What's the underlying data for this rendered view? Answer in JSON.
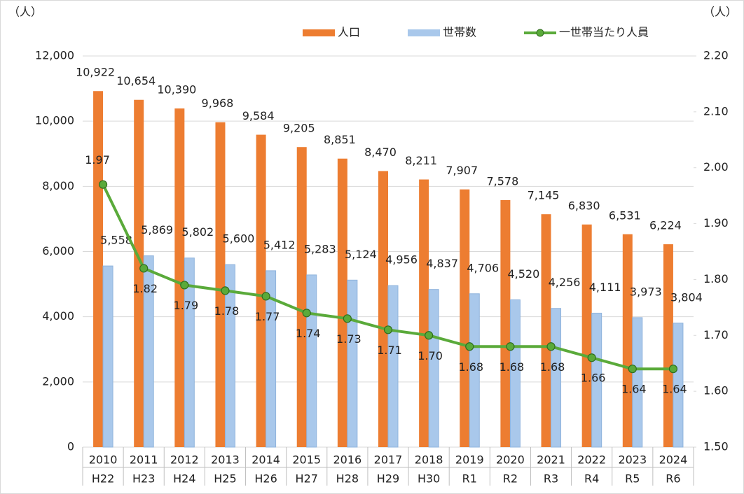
{
  "chart_data": {
    "type": "bar-line",
    "y_unit_label": "（人）",
    "y2_unit_label": "（人）",
    "categories": [
      [
        "2010",
        "H22"
      ],
      [
        "2011",
        "H23"
      ],
      [
        "2012",
        "H24"
      ],
      [
        "2013",
        "H25"
      ],
      [
        "2014",
        "H26"
      ],
      [
        "2015",
        "H27"
      ],
      [
        "2016",
        "H28"
      ],
      [
        "2017",
        "H29"
      ],
      [
        "2018",
        "H30"
      ],
      [
        "2019",
        "R1"
      ],
      [
        "2020",
        "R2"
      ],
      [
        "2021",
        "R3"
      ],
      [
        "2022",
        "R4"
      ],
      [
        "2023",
        "R5"
      ],
      [
        "2024",
        "R6"
      ]
    ],
    "series": [
      {
        "name": "人口",
        "type": "bar",
        "color": "#ed7d31",
        "values": [
          10922,
          10654,
          10390,
          9968,
          9584,
          9205,
          8851,
          8470,
          8211,
          7907,
          7578,
          7145,
          6830,
          6531,
          6224
        ],
        "value_labels": [
          "10,922",
          "10,654",
          "10,390",
          "9,968",
          "9,584",
          "9,205",
          "8,851",
          "8,470",
          "8,211",
          "7,907",
          "7,578",
          "7,145",
          "6,830",
          "6,531",
          "6,224"
        ]
      },
      {
        "name": "世帯数",
        "type": "bar",
        "color": "#a9c8eb",
        "values": [
          5558,
          5869,
          5802,
          5600,
          5412,
          5283,
          5124,
          4956,
          4837,
          4706,
          4520,
          4256,
          4111,
          3973,
          3804
        ],
        "value_labels": [
          "5,558",
          "5,869",
          "5,802",
          "5,600",
          "5,412",
          "5,283",
          "5,124",
          "4,956",
          "4,837",
          "4,706",
          "4,520",
          "4,256",
          "4,111",
          "3,973",
          "3,804"
        ]
      },
      {
        "name": "一世帯当たり人員",
        "type": "line",
        "axis": "y2",
        "color": "#5aaa3a",
        "values": [
          1.97,
          1.82,
          1.79,
          1.78,
          1.77,
          1.74,
          1.73,
          1.71,
          1.7,
          1.68,
          1.68,
          1.68,
          1.66,
          1.64,
          1.64
        ],
        "value_labels": [
          "1.97",
          "1.82",
          "1.79",
          "1.78",
          "1.77",
          "1.74",
          "1.73",
          "1.71",
          "1.70",
          "1.68",
          "1.68",
          "1.68",
          "1.66",
          "1.64",
          "1.64"
        ]
      }
    ],
    "ylim": [
      0,
      12000
    ],
    "yticks": [
      0,
      {
        "value": 2000,
        "label": "2,000"
      },
      {
        "value": 4000,
        "label": "4,000"
      },
      {
        "value": 6000,
        "label": "6,000"
      },
      {
        "value": 8000,
        "label": "8,000"
      },
      {
        "value": 10000,
        "label": "10,000"
      },
      {
        "value": 12000,
        "label": "12,000"
      }
    ],
    "y2lim": [
      1.5,
      2.2
    ],
    "y2ticks": [
      {
        "value": 1.5,
        "label": "1.50"
      },
      {
        "value": 1.6,
        "label": "1.60"
      },
      {
        "value": 1.7,
        "label": "1.70"
      },
      {
        "value": 1.8,
        "label": "1.80"
      },
      {
        "value": 1.9,
        "label": "1.90"
      },
      {
        "value": 2.0,
        "label": "2.00"
      },
      {
        "value": 2.1,
        "label": "2.10"
      },
      {
        "value": 2.2,
        "label": "2.20"
      }
    ],
    "grid": true,
    "legend": "top"
  }
}
